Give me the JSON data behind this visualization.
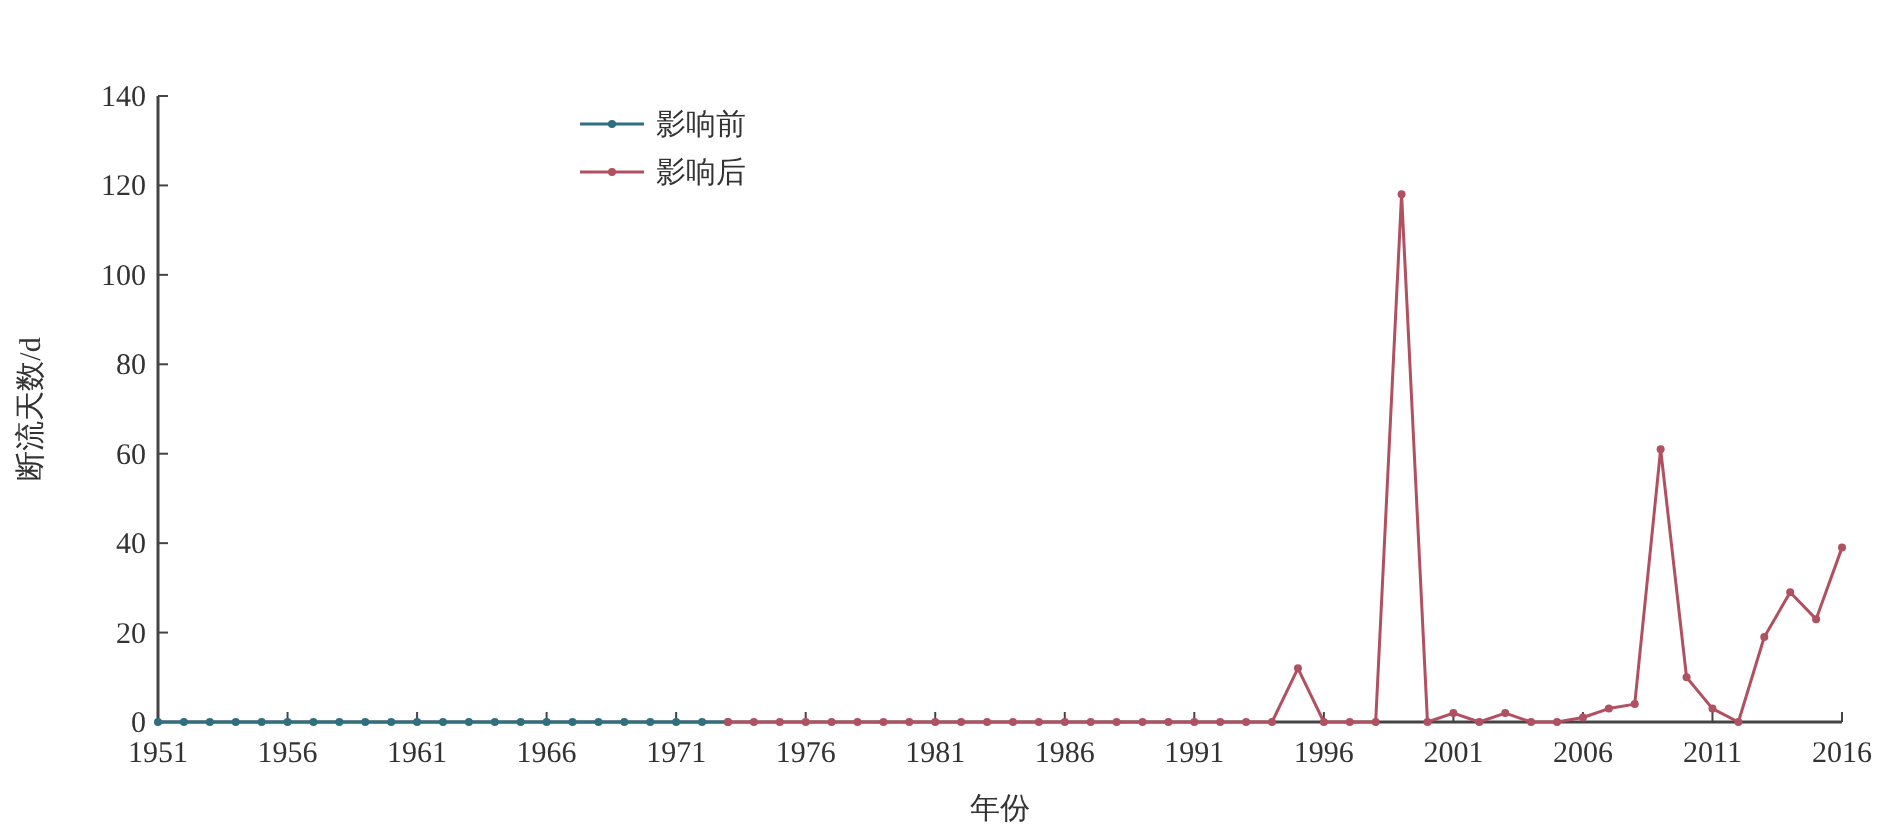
{
  "chart_data": {
    "type": "line",
    "xlabel": "年份",
    "ylabel": "断流天数/d",
    "xlim": [
      1951,
      2016
    ],
    "xticks": [
      1951,
      1956,
      1961,
      1966,
      1971,
      1976,
      1981,
      1986,
      1991,
      1996,
      2001,
      2006,
      2011,
      2016
    ],
    "ylim": [
      0,
      140
    ],
    "yticks": [
      0,
      20,
      40,
      60,
      80,
      100,
      120,
      140
    ],
    "grid": false,
    "legend": "top left",
    "marker": "circle",
    "line_style": "solid",
    "series": [
      {
        "name": "影响前",
        "color": "#2e6f80",
        "x": [
          1951,
          1952,
          1953,
          1954,
          1955,
          1956,
          1957,
          1958,
          1959,
          1960,
          1961,
          1962,
          1963,
          1964,
          1965,
          1966,
          1967,
          1968,
          1969,
          1970,
          1971,
          1972,
          1973
        ],
        "values": [
          0,
          0,
          0,
          0,
          0,
          0,
          0,
          0,
          0,
          0,
          0,
          0,
          0,
          0,
          0,
          0,
          0,
          0,
          0,
          0,
          0,
          0,
          0
        ]
      },
      {
        "name": "影响后",
        "color": "#b05060",
        "x": [
          1973,
          1974,
          1975,
          1976,
          1977,
          1978,
          1979,
          1980,
          1981,
          1982,
          1983,
          1984,
          1985,
          1986,
          1987,
          1988,
          1989,
          1990,
          1991,
          1992,
          1993,
          1994,
          1995,
          1996,
          1997,
          1998,
          1999,
          2000,
          2001,
          2002,
          2003,
          2004,
          2005,
          2006,
          2007,
          2008,
          2009,
          2010,
          2011,
          2012,
          2013,
          2014,
          2015,
          2016
        ],
        "values": [
          0,
          0,
          0,
          0,
          0,
          0,
          0,
          0,
          0,
          0,
          0,
          0,
          0,
          0,
          0,
          0,
          0,
          0,
          0,
          0,
          0,
          0,
          12,
          0,
          0,
          0,
          118,
          0,
          2,
          0,
          2,
          0,
          0,
          1,
          3,
          4,
          61,
          10,
          3,
          0,
          19,
          29,
          23,
          39
        ]
      }
    ]
  }
}
